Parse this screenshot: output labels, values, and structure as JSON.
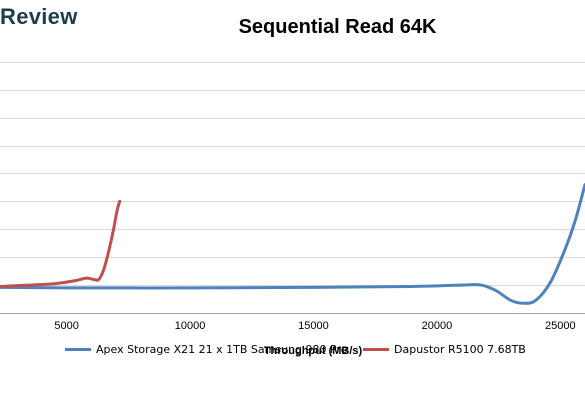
{
  "brand": {
    "text": "Review"
  },
  "chart_data": {
    "type": "line",
    "title": "Sequential Read 64K",
    "xlabel": "Throughput (MB/s)",
    "ylabel": "",
    "xlim": [
      2300,
      26000
    ],
    "ylim": [
      0,
      11
    ],
    "x_ticks": [
      5000,
      10000,
      15000,
      20000,
      25000
    ],
    "x_tick_labels": [
      "5000",
      "10000",
      "15000",
      "20000",
      "25000"
    ],
    "y_gridlines": [
      0,
      1,
      2,
      3,
      4,
      5,
      6,
      7,
      8,
      9,
      10,
      11
    ],
    "grid": true,
    "legend_position": "bottom",
    "series": [
      {
        "name": "Apex Storage X21 21 x 1TB Samsung 980 Pro",
        "color": "#4f81bd",
        "points": [
          [
            2300,
            0.92
          ],
          [
            5000,
            0.9
          ],
          [
            10000,
            0.9
          ],
          [
            15000,
            0.92
          ],
          [
            19000,
            0.95
          ],
          [
            21000,
            1.0
          ],
          [
            21800,
            1.0
          ],
          [
            22400,
            0.8
          ],
          [
            23000,
            0.45
          ],
          [
            23500,
            0.35
          ],
          [
            24000,
            0.45
          ],
          [
            24600,
            1.1
          ],
          [
            25200,
            2.3
          ],
          [
            25600,
            3.3
          ],
          [
            26000,
            4.6
          ]
        ]
      },
      {
        "name": "Dapustor R5100 7.68TB",
        "color": "#c0504d",
        "points": [
          [
            2300,
            0.95
          ],
          [
            3500,
            1.0
          ],
          [
            4500,
            1.05
          ],
          [
            5300,
            1.15
          ],
          [
            5800,
            1.25
          ],
          [
            6100,
            1.2
          ],
          [
            6300,
            1.2
          ],
          [
            6500,
            1.55
          ],
          [
            6700,
            2.2
          ],
          [
            6900,
            3.0
          ],
          [
            7050,
            3.7
          ],
          [
            7150,
            4.0
          ]
        ]
      }
    ]
  }
}
